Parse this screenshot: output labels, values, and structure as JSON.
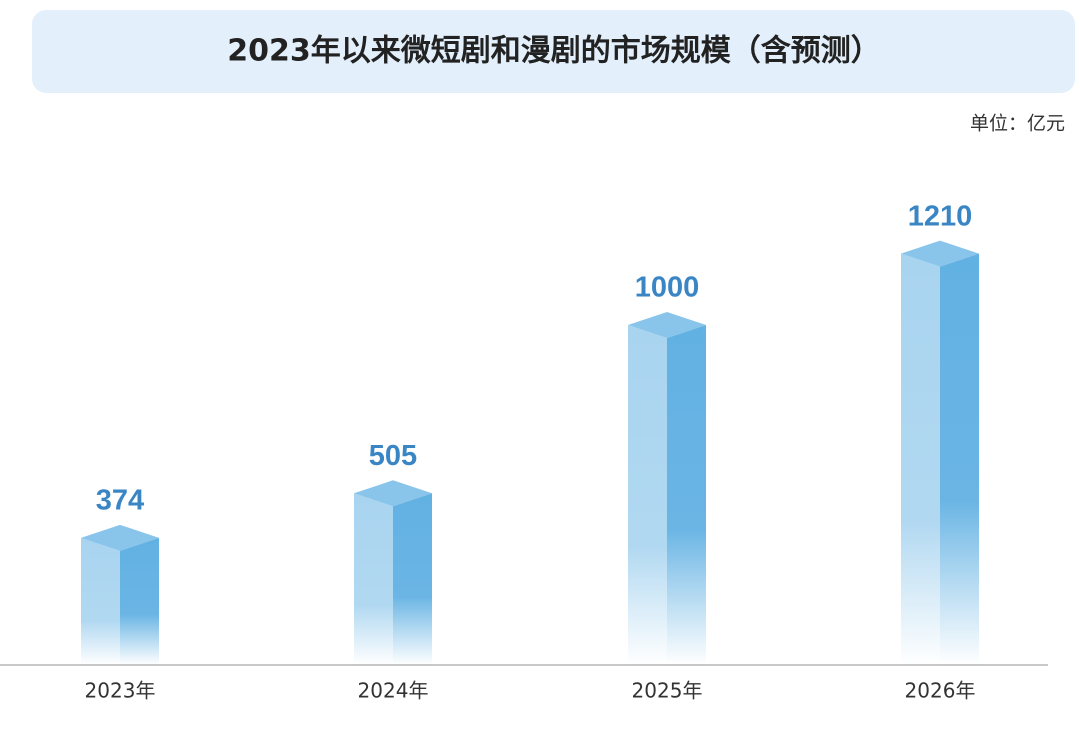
{
  "chart_data": {
    "type": "bar3d",
    "title": "2023年以来微短剧和漫剧的市场规模（含预测）",
    "unit": "单位：亿元",
    "categories": [
      "2023年",
      "2024年",
      "2025年",
      "2026年"
    ],
    "values": [
      374,
      505,
      1000,
      1210
    ],
    "color": "#62b1e3"
  }
}
